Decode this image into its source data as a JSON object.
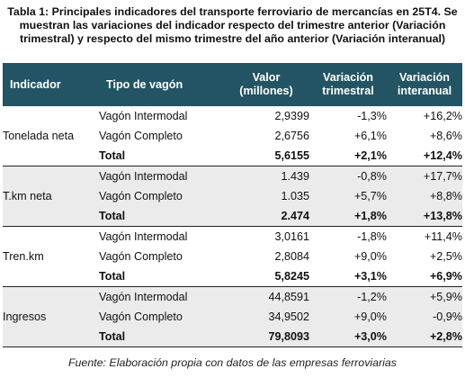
{
  "caption": "Tabla 1: Principales indicadores del transporte ferroviario de mercancías en 25T4. Se muestran las variaciones del indicador respecto del trimestre anterior (Variación trimestral) y respecto del mismo trimestre del año anterior (Variación interanual)",
  "table": {
    "header_color": "#235463",
    "headers": {
      "indicador": "Indicador",
      "tipo": "Tipo de vagón",
      "valor_line1": "Valor",
      "valor_line2": "(millones)",
      "vt_line1": "Variación",
      "vt_line2": "trimestral",
      "vi_line1": "Variación",
      "vi_line2": "interanual"
    },
    "groups": [
      {
        "indicador": "Tonelada neta",
        "shaded": false,
        "rows": [
          {
            "tipo": "Vagón Intermodal",
            "valor": "2,9399",
            "var_trimestral": "-1,3%",
            "var_interanual": "+16,2%"
          },
          {
            "tipo": "Vagón Completo",
            "valor": "2,6756",
            "var_trimestral": "+6,1%",
            "var_interanual": "+8,6%"
          },
          {
            "tipo": "Total",
            "valor": "5,6155",
            "var_trimestral": "+2,1%",
            "var_interanual": "+12,4%"
          }
        ]
      },
      {
        "indicador": "T.km neta",
        "shaded": true,
        "rows": [
          {
            "tipo": "Vagón Intermodal",
            "valor": "1.439",
            "var_trimestral": "-0,8%",
            "var_interanual": "+17,7%"
          },
          {
            "tipo": "Vagón Completo",
            "valor": "1.035",
            "var_trimestral": "+5,7%",
            "var_interanual": "+8,8%"
          },
          {
            "tipo": "Total",
            "valor": "2.474",
            "var_trimestral": "+1,8%",
            "var_interanual": "+13,8%"
          }
        ]
      },
      {
        "indicador": "Tren.km",
        "shaded": false,
        "rows": [
          {
            "tipo": "Vagón Intermodal",
            "valor": "3,0161",
            "var_trimestral": "-1,8%",
            "var_interanual": "+11,4%"
          },
          {
            "tipo": "Vagón Completo",
            "valor": "2,8084",
            "var_trimestral": "+9,0%",
            "var_interanual": "+2,5%"
          },
          {
            "tipo": "Total",
            "valor": "5,8245",
            "var_trimestral": "+3,1%",
            "var_interanual": "+6,9%"
          }
        ]
      },
      {
        "indicador": "Ingresos",
        "shaded": true,
        "rows": [
          {
            "tipo": "Vagón Intermodal",
            "valor": "44,8591",
            "var_trimestral": "-1,2%",
            "var_interanual": "+5,9%"
          },
          {
            "tipo": "Vagón Completo",
            "valor": "34,9502",
            "var_trimestral": "+9,0%",
            "var_interanual": "-0,9%"
          },
          {
            "tipo": "Total",
            "valor": "79,8093",
            "var_trimestral": "+3,0%",
            "var_interanual": "+2,8%"
          }
        ]
      }
    ]
  },
  "source": "Fuente: Elaboración propia con datos de las empresas ferroviarias"
}
